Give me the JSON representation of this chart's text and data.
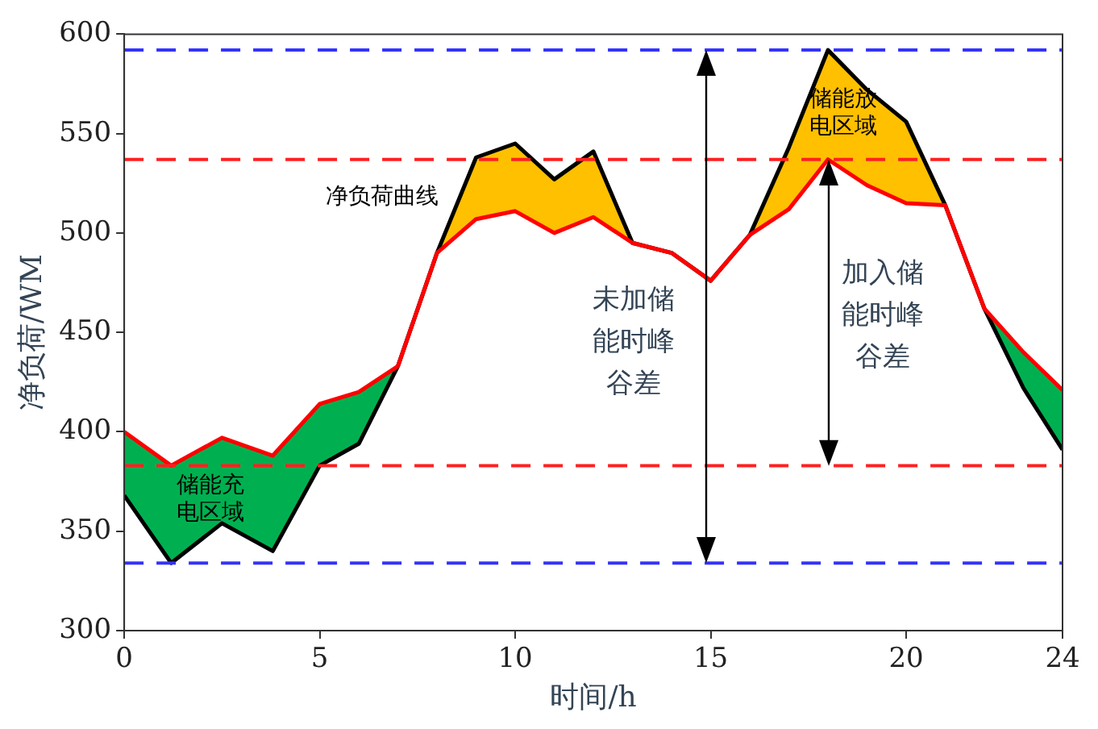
{
  "chart_data": {
    "type": "line",
    "xlabel": "时间/h",
    "ylabel": "净负荷/WM",
    "x": [
      0,
      1.2,
      2.5,
      3.8,
      5,
      6,
      7,
      8,
      9,
      10,
      11,
      12,
      13,
      14,
      15,
      16,
      17,
      18,
      19,
      20,
      21,
      22,
      23,
      24
    ],
    "xlim": [
      0,
      24
    ],
    "xticks": [
      0,
      5,
      10,
      15,
      20,
      24
    ],
    "ylim": [
      300,
      600
    ],
    "yticks": [
      300,
      350,
      400,
      450,
      500,
      550,
      600
    ],
    "grid": false,
    "legend": false,
    "marker": "none",
    "line_style": "solid",
    "series": [
      {
        "color": "#000000",
        "values": [
          368,
          334,
          354,
          340,
          383,
          394,
          433,
          490,
          538,
          545,
          527,
          541,
          495,
          490,
          476,
          499,
          543,
          592,
          572,
          556,
          514,
          462,
          422,
          391
        ]
      },
      {
        "color": "#ff0000",
        "values": [
          400,
          383,
          397,
          388,
          414,
          420,
          433,
          490,
          507,
          511,
          500,
          508,
          495,
          490,
          476,
          499,
          512,
          537,
          524,
          515,
          514,
          462,
          440,
          421
        ]
      }
    ],
    "ref_lines": [
      {
        "axis": "y",
        "value": 592,
        "color": "#3333ff",
        "line_style": "dashed"
      },
      {
        "axis": "y",
        "value": 334,
        "color": "#3333ff",
        "line_style": "dashed"
      },
      {
        "axis": "y",
        "value": 537,
        "color": "#ff2020",
        "line_style": "dashed"
      },
      {
        "axis": "y",
        "value": 383,
        "color": "#ff2020",
        "line_style": "dashed"
      }
    ],
    "annotations": [
      "净负荷曲线",
      "储能放电区域",
      "储能充电区域",
      "未加储能时峰谷差",
      "加入储能时峰谷差"
    ]
  }
}
